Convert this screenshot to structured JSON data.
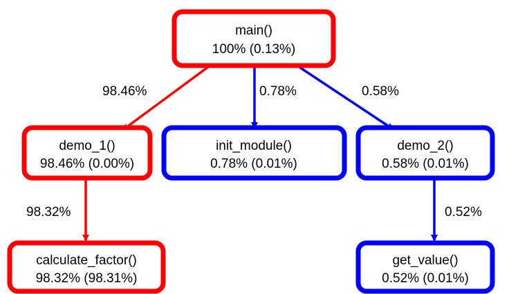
{
  "colors": {
    "hot": "#ff0000",
    "cold": "#0000ff"
  },
  "nodes": {
    "main": {
      "name": "main()",
      "stats": "100% (0.13%)",
      "color": "hot"
    },
    "demo_1": {
      "name": "demo_1()",
      "stats": "98.46% (0.00%)",
      "color": "hot"
    },
    "init_module": {
      "name": "init_module()",
      "stats": "0.78% (0.01%)",
      "color": "cold"
    },
    "demo_2": {
      "name": "demo_2()",
      "stats": "0.58% (0.01%)",
      "color": "cold"
    },
    "calculate_factor": {
      "name": "calculate_factor()",
      "stats": "98.32% (98.31%)",
      "color": "hot"
    },
    "get_value": {
      "name": "get_value()",
      "stats": "0.52% (0.01%)",
      "color": "cold"
    }
  },
  "edges": {
    "main_demo_1": {
      "from": "main",
      "to": "demo_1",
      "label": "98.46%",
      "color": "hot"
    },
    "main_init_module": {
      "from": "main",
      "to": "init_module",
      "label": "0.78%",
      "color": "cold"
    },
    "main_demo_2": {
      "from": "main",
      "to": "demo_2",
      "label": "0.58%",
      "color": "cold"
    },
    "demo_1_calculate_factor": {
      "from": "demo_1",
      "to": "calculate_factor",
      "label": "98.32%",
      "color": "hot"
    },
    "demo_2_get_value": {
      "from": "demo_2",
      "to": "get_value",
      "label": "0.52%",
      "color": "cold"
    }
  }
}
